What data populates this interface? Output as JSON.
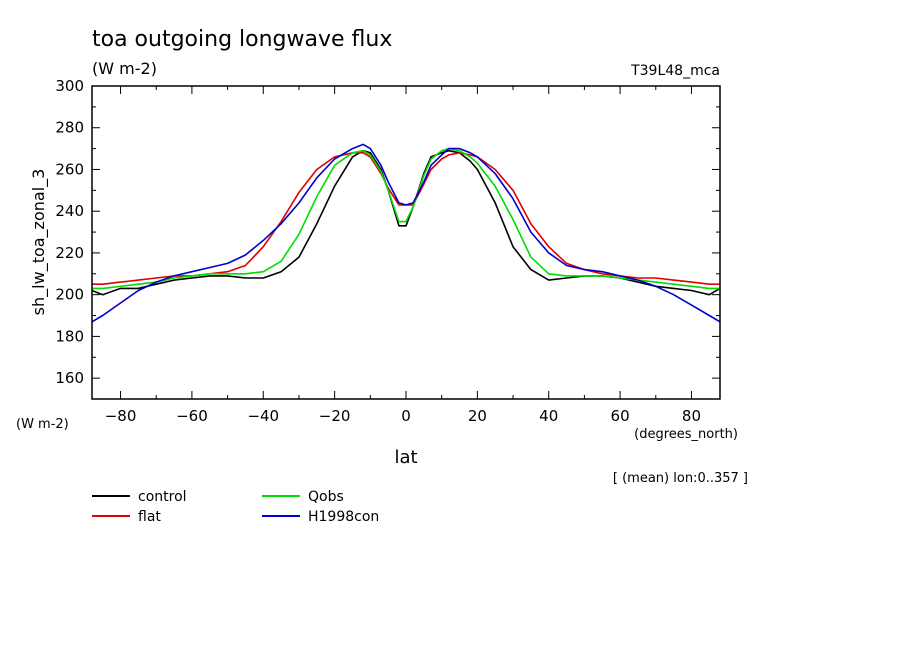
{
  "chart_data": {
    "type": "line",
    "title": "toa outgoing longwave flux",
    "units": "(W m-2)",
    "run_label": "T39L48_mca",
    "ylabel": "sh_lw_toa_zonal_3",
    "ylabel_units": "(W m-2)",
    "xlabel": "lat",
    "xlabel_units": "(degrees_north)",
    "averaging_note": "[ (mean) lon:0..357 ]",
    "xlim": [
      -88,
      88
    ],
    "ylim": [
      150,
      300
    ],
    "xticks": [
      -80,
      -60,
      -40,
      -20,
      0,
      20,
      40,
      60,
      80
    ],
    "yticks": [
      160,
      180,
      200,
      220,
      240,
      260,
      280,
      300
    ],
    "x": [
      -88,
      -85,
      -80,
      -75,
      -70,
      -65,
      -60,
      -55,
      -50,
      -45,
      -40,
      -35,
      -30,
      -25,
      -20,
      -15,
      -12,
      -10,
      -7,
      -5,
      -2,
      0,
      2,
      5,
      7,
      10,
      12,
      15,
      18,
      20,
      25,
      30,
      35,
      40,
      45,
      50,
      55,
      60,
      65,
      70,
      75,
      80,
      85,
      88
    ],
    "series": [
      {
        "name": "control",
        "color": "#000000",
        "values": [
          202,
          200,
          203,
          203,
          205,
          207,
          208,
          209,
          209,
          208,
          208,
          211,
          218,
          234,
          252,
          266,
          269,
          268,
          260,
          250,
          233,
          233,
          242,
          258,
          266,
          268,
          269,
          268,
          264,
          260,
          244,
          223,
          212,
          207,
          208,
          209,
          209,
          208,
          206,
          204,
          203,
          202,
          200,
          203
        ]
      },
      {
        "name": "flat",
        "color": "#e00000",
        "values": [
          205,
          205,
          206,
          207,
          208,
          209,
          209,
          210,
          211,
          214,
          223,
          235,
          249,
          260,
          266,
          268,
          268,
          266,
          258,
          251,
          243,
          243,
          243,
          253,
          260,
          265,
          267,
          268,
          267,
          266,
          260,
          250,
          234,
          223,
          215,
          212,
          210,
          209,
          208,
          208,
          207,
          206,
          205,
          205
        ]
      },
      {
        "name": "Qobs",
        "color": "#00dd00",
        "values": [
          203,
          203,
          204,
          205,
          206,
          208,
          209,
          210,
          210,
          210,
          211,
          216,
          229,
          247,
          262,
          268,
          269,
          267,
          259,
          250,
          235,
          235,
          242,
          257,
          265,
          269,
          270,
          269,
          266,
          263,
          252,
          236,
          218,
          210,
          209,
          209,
          209,
          208,
          207,
          206,
          205,
          204,
          203,
          203
        ]
      },
      {
        "name": "H1998con",
        "color": "#0000cc",
        "values": [
          187,
          190,
          196,
          202,
          206,
          209,
          211,
          213,
          215,
          219,
          226,
          234,
          244,
          256,
          265,
          270,
          272,
          270,
          262,
          254,
          244,
          243,
          244,
          254,
          262,
          267,
          270,
          270,
          268,
          266,
          258,
          246,
          230,
          220,
          214,
          212,
          211,
          209,
          207,
          204,
          200,
          195,
          190,
          187
        ]
      }
    ]
  }
}
